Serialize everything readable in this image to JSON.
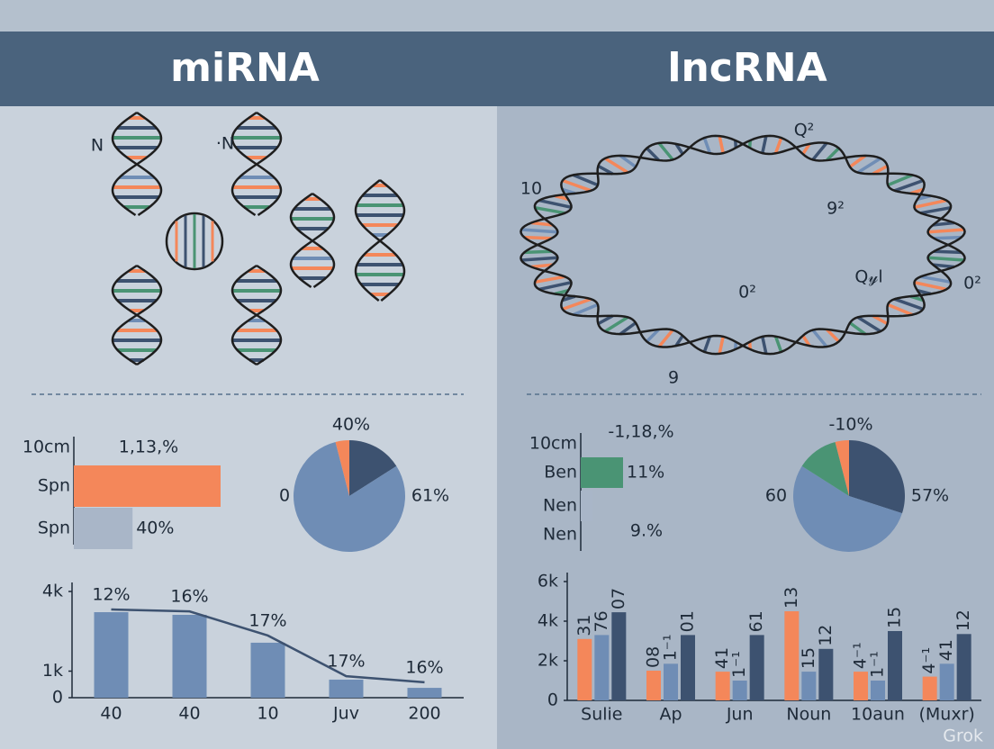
{
  "header": {
    "left_title": "miRNA",
    "right_title": "lncRNA"
  },
  "diagram_labels": {
    "left": [
      "N",
      "·N"
    ],
    "right": [
      "10",
      "Q²",
      "9²",
      "0²",
      "Q𝓎l",
      "0²",
      "9"
    ]
  },
  "chart_data": [
    {
      "type": "hbar",
      "categories": [
        "10cm",
        "Spn",
        "Spn"
      ],
      "values": [
        null,
        100,
        40
      ],
      "value_labels": [
        null,
        null,
        "40%"
      ],
      "colors": [
        null,
        "#f4875a",
        "#a9b6c8"
      ],
      "annotations": [
        "1,13,%"
      ]
    },
    {
      "type": "hbar",
      "categories": [
        "10cm",
        "Ben",
        "Nen",
        "Nen"
      ],
      "values": [
        null,
        11,
        3,
        null
      ],
      "value_labels": [
        null,
        "11%",
        null,
        null
      ],
      "colors": [
        null,
        "#4a9474",
        "#a9b6c8",
        null
      ],
      "annotations": [
        "-1,18,%",
        "9.%"
      ]
    },
    {
      "type": "pie",
      "values": [
        16,
        80,
        4
      ],
      "colors": [
        "#3d5270",
        "#6f8db5",
        "#f4875a"
      ],
      "annotations": [
        "40%",
        "61%",
        "0"
      ]
    },
    {
      "type": "pie",
      "values": [
        30,
        54,
        12,
        4
      ],
      "colors": [
        "#3d5270",
        "#6f8db5",
        "#4a9474",
        "#f4875a"
      ],
      "annotations": [
        "-10%",
        "57%",
        "60"
      ]
    },
    {
      "type": "bar_line",
      "categories": [
        "40",
        "40",
        "10",
        "Juv",
        "200"
      ],
      "series": [
        {
          "type": "bar",
          "color": "#6f8db5",
          "values": [
            3220,
            3120,
            2070,
            680,
            370
          ]
        },
        {
          "type": "line",
          "color": "#3d5270",
          "values": [
            3320,
            3250,
            2340,
            810,
            580
          ]
        }
      ],
      "annotations": [
        "12%",
        "16%",
        "17%",
        "17%",
        "16%"
      ],
      "ylim": [
        0,
        4000
      ],
      "yticks": [
        0,
        {
          "value": 1000,
          "label": "1k"
        },
        {
          "value": 4000,
          "label": "4k"
        }
      ]
    },
    {
      "type": "grouped_bar",
      "categories": [
        "Sulie",
        "Ap",
        "Jun",
        "Noun",
        "10aun",
        "(Muxr)"
      ],
      "series": [
        {
          "color": "#f4875a",
          "values": [
            3100,
            1500,
            1450,
            4500,
            1450,
            1200
          ]
        },
        {
          "color": "#6f8db5",
          "values": [
            3300,
            1850,
            1000,
            1450,
            1000,
            1850
          ]
        },
        {
          "color": "#3d5270",
          "values": [
            4450,
            3300,
            3300,
            2600,
            3500,
            3350
          ]
        }
      ],
      "annotations": [
        "31",
        "76",
        "07",
        "08",
        "1⁻¹",
        "01",
        "41",
        "1⁻¹",
        "61",
        "13",
        "15",
        "12",
        "4⁻¹",
        "1⁻¹",
        "15",
        "4⁻¹",
        "41",
        "12"
      ],
      "ylim": [
        0,
        6000
      ],
      "yticks": [
        0,
        {
          "value": 2000,
          "label": "2k"
        },
        {
          "value": 4000,
          "label": "4k"
        },
        {
          "value": 6000,
          "label": "6k"
        }
      ]
    }
  ],
  "watermark": "Grok"
}
